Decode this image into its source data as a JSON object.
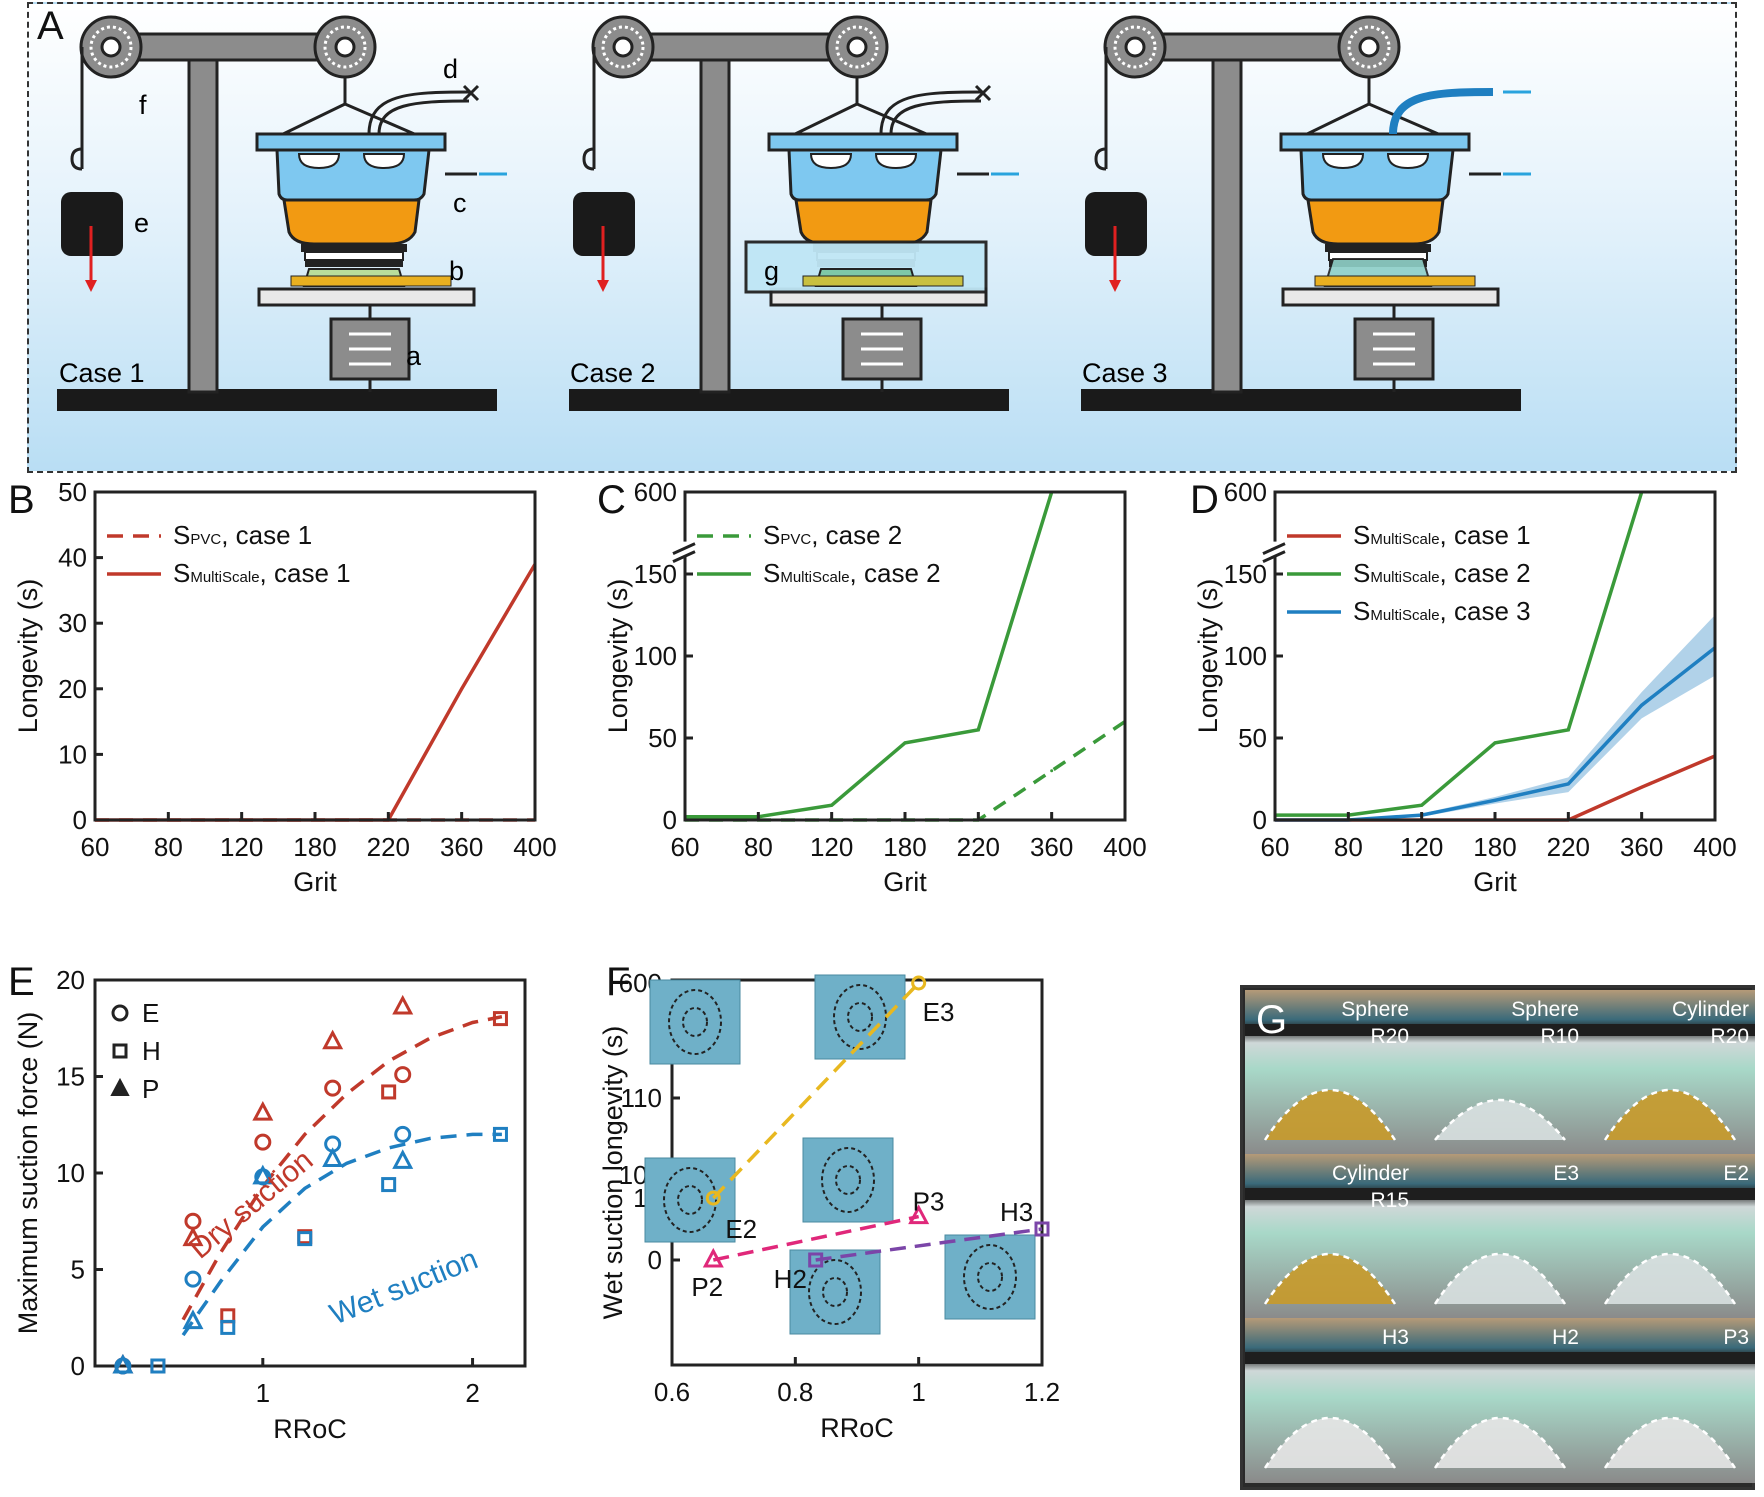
{
  "panelA": {
    "label": "A",
    "cases": [
      "Case 1",
      "Case 2",
      "Case 3"
    ],
    "parts": {
      "a": "a",
      "b": "b",
      "c": "c",
      "d": "d",
      "e": "e",
      "f": "f",
      "g": "g"
    }
  },
  "panel_labels": {
    "B": "B",
    "C": "C",
    "D": "D",
    "E": "E",
    "F": "F",
    "G": "G"
  },
  "colors": {
    "red": "#c0392b",
    "green": "#3a9a3a",
    "blue": "#1f7fc1",
    "yellow": "#e8b820",
    "magenta": "#e0287a",
    "purple": "#7b45a8",
    "cyan": "#29a3dd"
  },
  "panelG": {
    "cells": [
      {
        "line1": "Sphere",
        "line2": "R20"
      },
      {
        "line1": "Sphere",
        "line2": "R10"
      },
      {
        "line1": "Cylinder",
        "line2": "R20"
      },
      {
        "line1": "Cylinder",
        "line2": "R15"
      },
      {
        "line1": "E3",
        "line2": ""
      },
      {
        "line1": "E2",
        "line2": ""
      },
      {
        "line1": "H3",
        "line2": ""
      },
      {
        "line1": "H2",
        "line2": ""
      },
      {
        "line1": "P3",
        "line2": ""
      }
    ]
  },
  "chart_data": [
    {
      "panel": "B",
      "type": "line",
      "xlabel": "Grit",
      "ylabel": "Longevity (s)",
      "categories": [
        "60",
        "80",
        "120",
        "180",
        "220",
        "360",
        "400"
      ],
      "ylim": [
        0,
        50
      ],
      "yticks": [
        "0",
        "10",
        "20",
        "30",
        "40",
        "50"
      ],
      "legend_position": "top-left",
      "series": [
        {
          "name": "S",
          "sub": "PVC",
          "tail": ", case 1",
          "style": "dashed",
          "color": "#c0392b",
          "values": [
            0,
            0,
            0,
            0,
            0,
            0,
            0
          ]
        },
        {
          "name": "S",
          "sub": "MultiScale",
          "tail": ", case 1",
          "style": "solid",
          "color": "#c0392b",
          "values": [
            0,
            0,
            0,
            0,
            0,
            20,
            39
          ]
        }
      ]
    },
    {
      "panel": "C",
      "type": "line",
      "xlabel": "Grit",
      "ylabel": "Longevity (s)",
      "categories": [
        "60",
        "80",
        "120",
        "180",
        "220",
        "360",
        "400"
      ],
      "ylim": [
        0,
        600
      ],
      "axis_break": [
        160,
        600
      ],
      "yticks": [
        "0",
        "50",
        "100",
        "150",
        "600"
      ],
      "legend_position": "top-left",
      "series": [
        {
          "name": "S",
          "sub": "PVC",
          "tail": ", case 2",
          "style": "dashed",
          "color": "#3a9a3a",
          "values": [
            0,
            0,
            0,
            0,
            0,
            30,
            60
          ]
        },
        {
          "name": "S",
          "sub": "MultiScale",
          "tail": ", case 2",
          "style": "solid",
          "color": "#3a9a3a",
          "values": [
            2,
            2,
            9,
            47,
            55,
            600,
            null
          ]
        }
      ]
    },
    {
      "panel": "D",
      "type": "line",
      "xlabel": "Grit",
      "ylabel": "Longevity (s)",
      "categories": [
        "60",
        "80",
        "120",
        "180",
        "220",
        "360",
        "400"
      ],
      "ylim": [
        0,
        600
      ],
      "axis_break": [
        160,
        600
      ],
      "yticks": [
        "0",
        "50",
        "100",
        "150",
        "600"
      ],
      "legend_position": "top-left",
      "series": [
        {
          "name": "S",
          "sub": "MultiScale",
          "tail": ", case 1",
          "style": "solid",
          "color": "#c0392b",
          "values": [
            0,
            0,
            0,
            0,
            0,
            20,
            39
          ]
        },
        {
          "name": "S",
          "sub": "MultiScale",
          "tail": ", case 2",
          "style": "solid",
          "color": "#3a9a3a",
          "values": [
            3,
            3,
            9,
            47,
            55,
            600,
            null
          ]
        },
        {
          "name": "S",
          "sub": "MultiScale",
          "tail": ", case 3",
          "style": "solid",
          "color": "#1f7fc1",
          "values": [
            0,
            0,
            3,
            12,
            22,
            70,
            105
          ],
          "band_low": [
            0,
            0,
            2,
            10,
            17,
            62,
            88
          ],
          "band_high": [
            0,
            0,
            4,
            14,
            26,
            78,
            125
          ]
        }
      ]
    },
    {
      "panel": "E",
      "type": "scatter",
      "xlabel": "RRoC",
      "ylabel": "Maximum suction force (N)",
      "xticks": [
        "1",
        "2"
      ],
      "ylim": [
        0,
        20
      ],
      "yticks": [
        "0",
        "5",
        "10",
        "15",
        "20"
      ],
      "legend_position": "top-left",
      "legend": [
        {
          "marker": "circle",
          "label": "E"
        },
        {
          "marker": "square",
          "label": "H"
        },
        {
          "marker": "triangle",
          "label": "P"
        }
      ],
      "annotations": [
        "Dry suction",
        "Wet suction"
      ],
      "series": [
        {
          "name": "Dry suction",
          "color": "#c0392b",
          "points": [
            {
              "m": "circle",
              "x": 0.333,
              "y": 0
            },
            {
              "m": "circle",
              "x": 0.667,
              "y": 7.5
            },
            {
              "m": "circle",
              "x": 1.0,
              "y": 11.6
            },
            {
              "m": "circle",
              "x": 1.333,
              "y": 14.4
            },
            {
              "m": "circle",
              "x": 1.667,
              "y": 15.1
            },
            {
              "m": "square",
              "x": 0.5,
              "y": 0
            },
            {
              "m": "square",
              "x": 0.833,
              "y": 2.6
            },
            {
              "m": "square",
              "x": 1.2,
              "y": 6.7
            },
            {
              "m": "square",
              "x": 1.6,
              "y": 14.2
            },
            {
              "m": "square",
              "x": 2.133,
              "y": 18.0
            },
            {
              "m": "triangle",
              "x": 0.333,
              "y": 0
            },
            {
              "m": "triangle",
              "x": 0.667,
              "y": 6.6
            },
            {
              "m": "triangle",
              "x": 1.0,
              "y": 13.1
            },
            {
              "m": "triangle",
              "x": 1.333,
              "y": 16.8
            },
            {
              "m": "triangle",
              "x": 1.667,
              "y": 18.6
            }
          ]
        },
        {
          "name": "Wet suction",
          "color": "#1f7fc1",
          "points": [
            {
              "m": "circle",
              "x": 0.333,
              "y": 0
            },
            {
              "m": "circle",
              "x": 0.667,
              "y": 4.5
            },
            {
              "m": "circle",
              "x": 1.0,
              "y": 9.8
            },
            {
              "m": "circle",
              "x": 1.333,
              "y": 11.5
            },
            {
              "m": "circle",
              "x": 1.667,
              "y": 12.0
            },
            {
              "m": "square",
              "x": 0.5,
              "y": 0
            },
            {
              "m": "square",
              "x": 0.833,
              "y": 2.0
            },
            {
              "m": "square",
              "x": 1.2,
              "y": 6.6
            },
            {
              "m": "square",
              "x": 1.6,
              "y": 9.4
            },
            {
              "m": "square",
              "x": 2.133,
              "y": 12.0
            },
            {
              "m": "triangle",
              "x": 0.333,
              "y": 0
            },
            {
              "m": "triangle",
              "x": 0.667,
              "y": 2.3
            },
            {
              "m": "triangle",
              "x": 1.0,
              "y": 9.8
            },
            {
              "m": "triangle",
              "x": 1.333,
              "y": 10.7
            },
            {
              "m": "triangle",
              "x": 1.667,
              "y": 10.6
            }
          ]
        }
      ],
      "fits": [
        {
          "color": "#c0392b",
          "x": [
            0.62,
            0.8,
            1.0,
            1.2,
            1.4,
            1.6,
            1.8,
            2.0,
            2.14
          ],
          "y": [
            2.4,
            5.9,
            9.3,
            12.0,
            14.1,
            15.8,
            17.0,
            17.8,
            18.1
          ]
        },
        {
          "color": "#1f7fc1",
          "x": [
            0.62,
            0.8,
            1.0,
            1.2,
            1.4,
            1.6,
            1.8,
            2.0,
            2.14
          ],
          "y": [
            1.6,
            4.4,
            7.2,
            9.2,
            10.5,
            11.3,
            11.8,
            12.0,
            12.0
          ]
        }
      ]
    },
    {
      "panel": "F",
      "type": "scatter",
      "xlabel": "RRoC",
      "ylabel": "Wet suction longevity (s)",
      "xlim": [
        0.6,
        1.2
      ],
      "xticks": [
        "0.6",
        "0.8",
        "1",
        "1.2"
      ],
      "yticks": [
        "0",
        "10",
        "100",
        "110",
        "600"
      ],
      "axis_breaks": true,
      "series": [
        {
          "name": "E",
          "color": "#e8b820",
          "marker": "circle",
          "points": [
            {
              "label": "E2",
              "x": 0.667,
              "y": 97
            },
            {
              "label": "E3",
              "x": 1.0,
              "y": 600
            }
          ]
        },
        {
          "name": "P",
          "color": "#e0287a",
          "marker": "triangle",
          "points": [
            {
              "label": "P2",
              "x": 0.667,
              "y": 0
            },
            {
              "label": "P3",
              "x": 1.0,
              "y": 7
            }
          ]
        },
        {
          "name": "H",
          "color": "#7b45a8",
          "marker": "square",
          "points": [
            {
              "label": "H2",
              "x": 0.833,
              "y": 0
            },
            {
              "label": "H3",
              "x": 1.2,
              "y": 5
            }
          ]
        }
      ]
    }
  ]
}
